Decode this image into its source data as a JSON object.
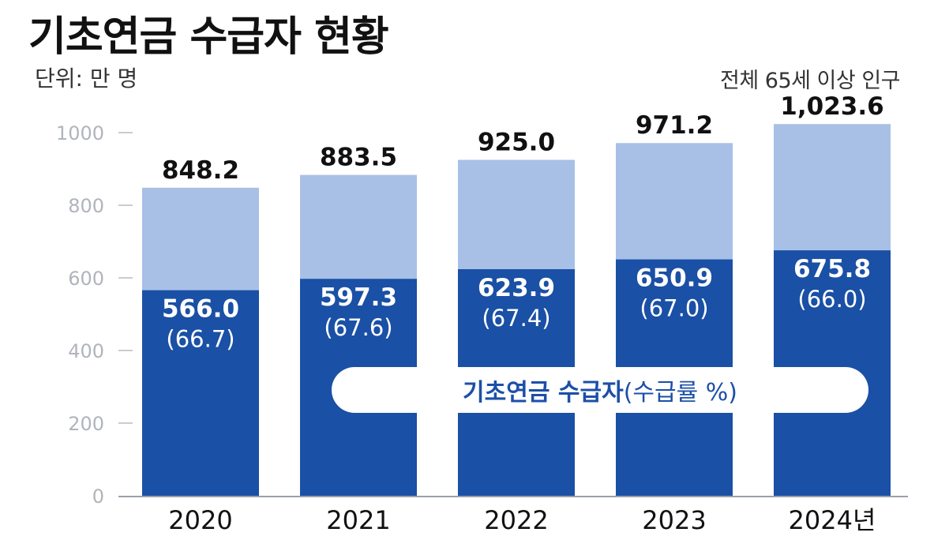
{
  "title": "기초연금 수급자 현황",
  "unit_label": "단위: 만 명",
  "total_series_label": "전체 65세 이상 인구",
  "legend": {
    "strong": "기초연금 수급자",
    "weak": "(수급률 %)"
  },
  "colors": {
    "total_bar": "#a8c0e6",
    "recipient_bar": "#1a50a5",
    "legend_text": "#1c4fa8"
  },
  "chart_data": {
    "type": "bar",
    "stacked": false,
    "categories": [
      "2020",
      "2021",
      "2022",
      "2023",
      "2024년"
    ],
    "series": [
      {
        "name": "전체 65세 이상 인구",
        "values": [
          848.2,
          883.5,
          925.0,
          971.2,
          1023.6
        ],
        "labels": [
          "848.2",
          "883.5",
          "925.0",
          "971.2",
          "1,023.6"
        ]
      },
      {
        "name": "기초연금 수급자",
        "values": [
          566.0,
          597.3,
          623.9,
          650.9,
          675.8
        ],
        "labels": [
          "566.0",
          "597.3",
          "623.9",
          "650.9",
          "675.8"
        ],
        "rates": [
          66.7,
          67.6,
          67.4,
          67.0,
          66.0
        ],
        "rate_labels": [
          "(66.7)",
          "(67.6)",
          "(67.4)",
          "(67.0)",
          "(66.0)"
        ]
      }
    ],
    "yticks": [
      0,
      200,
      400,
      600,
      800,
      1000
    ],
    "ylim": [
      0,
      1000
    ],
    "grid": false,
    "legend_position": "inside-bottom"
  }
}
